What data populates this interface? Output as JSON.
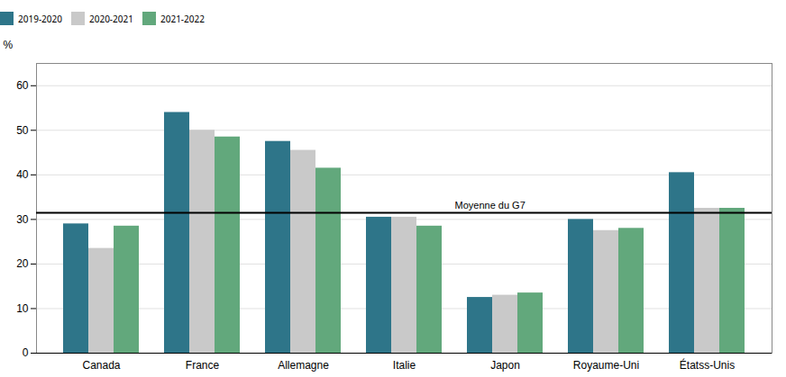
{
  "chart_data": {
    "type": "bar",
    "categories": [
      "Canada",
      "France",
      "Allemagne",
      "Italie",
      "Japon",
      "Royaume-Uni",
      "Étatss-Unis"
    ],
    "series": [
      {
        "name": "2019-2020",
        "color": "#2e7589",
        "values": [
          29.0,
          54.0,
          47.5,
          30.5,
          12.5,
          30.0,
          40.5
        ]
      },
      {
        "name": "2020-2021",
        "color": "#c9c9c9",
        "values": [
          23.5,
          50.0,
          45.5,
          30.5,
          13.0,
          27.5,
          32.5
        ]
      },
      {
        "name": "2021-2022",
        "color": "#62a87c",
        "values": [
          28.5,
          48.5,
          41.5,
          28.5,
          13.5,
          28.0,
          32.5
        ]
      }
    ],
    "ylabel": "%",
    "ylim": [
      0,
      65
    ],
    "yticks": [
      0,
      10,
      20,
      30,
      40,
      50,
      60
    ],
    "grid": true,
    "legend": "top",
    "annotations": [
      {
        "text": "Moyenne du G7",
        "y": 31.5
      }
    ]
  }
}
